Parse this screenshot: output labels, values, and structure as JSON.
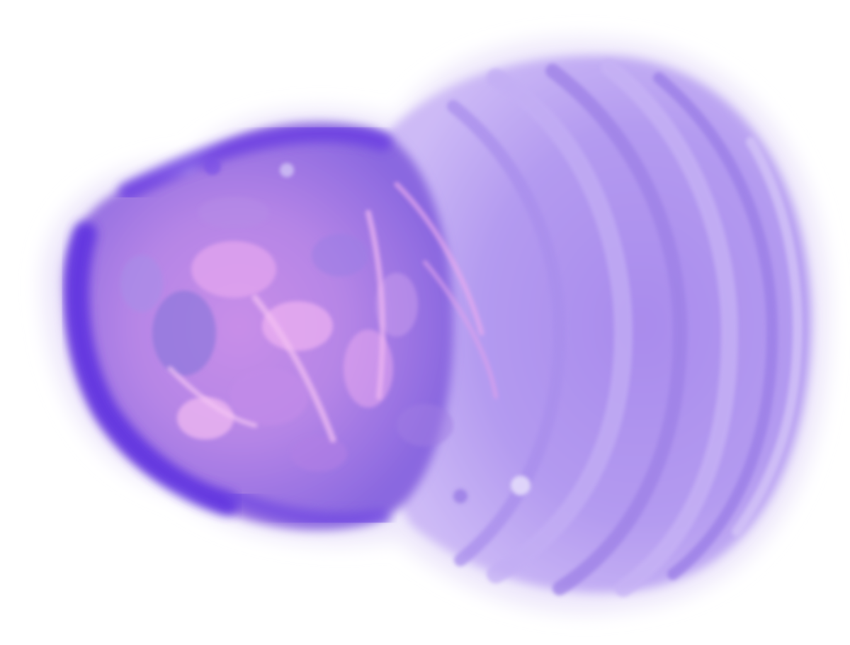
{
  "image": {
    "subject": "tissue-section",
    "background_color": "#ffffff",
    "colors": {
      "outer_halo": "#ece6fb",
      "body_lilac": "#b79af0",
      "body_violet": "#9a7ce8",
      "edge_deep_blue": "#5a2be0",
      "core_magenta": "#d08ae8",
      "core_pink": "#f0b0f2",
      "core_blue": "#7d6cd8",
      "band_light": "#c9b4f4",
      "band_dark": "#8f72e2"
    }
  }
}
